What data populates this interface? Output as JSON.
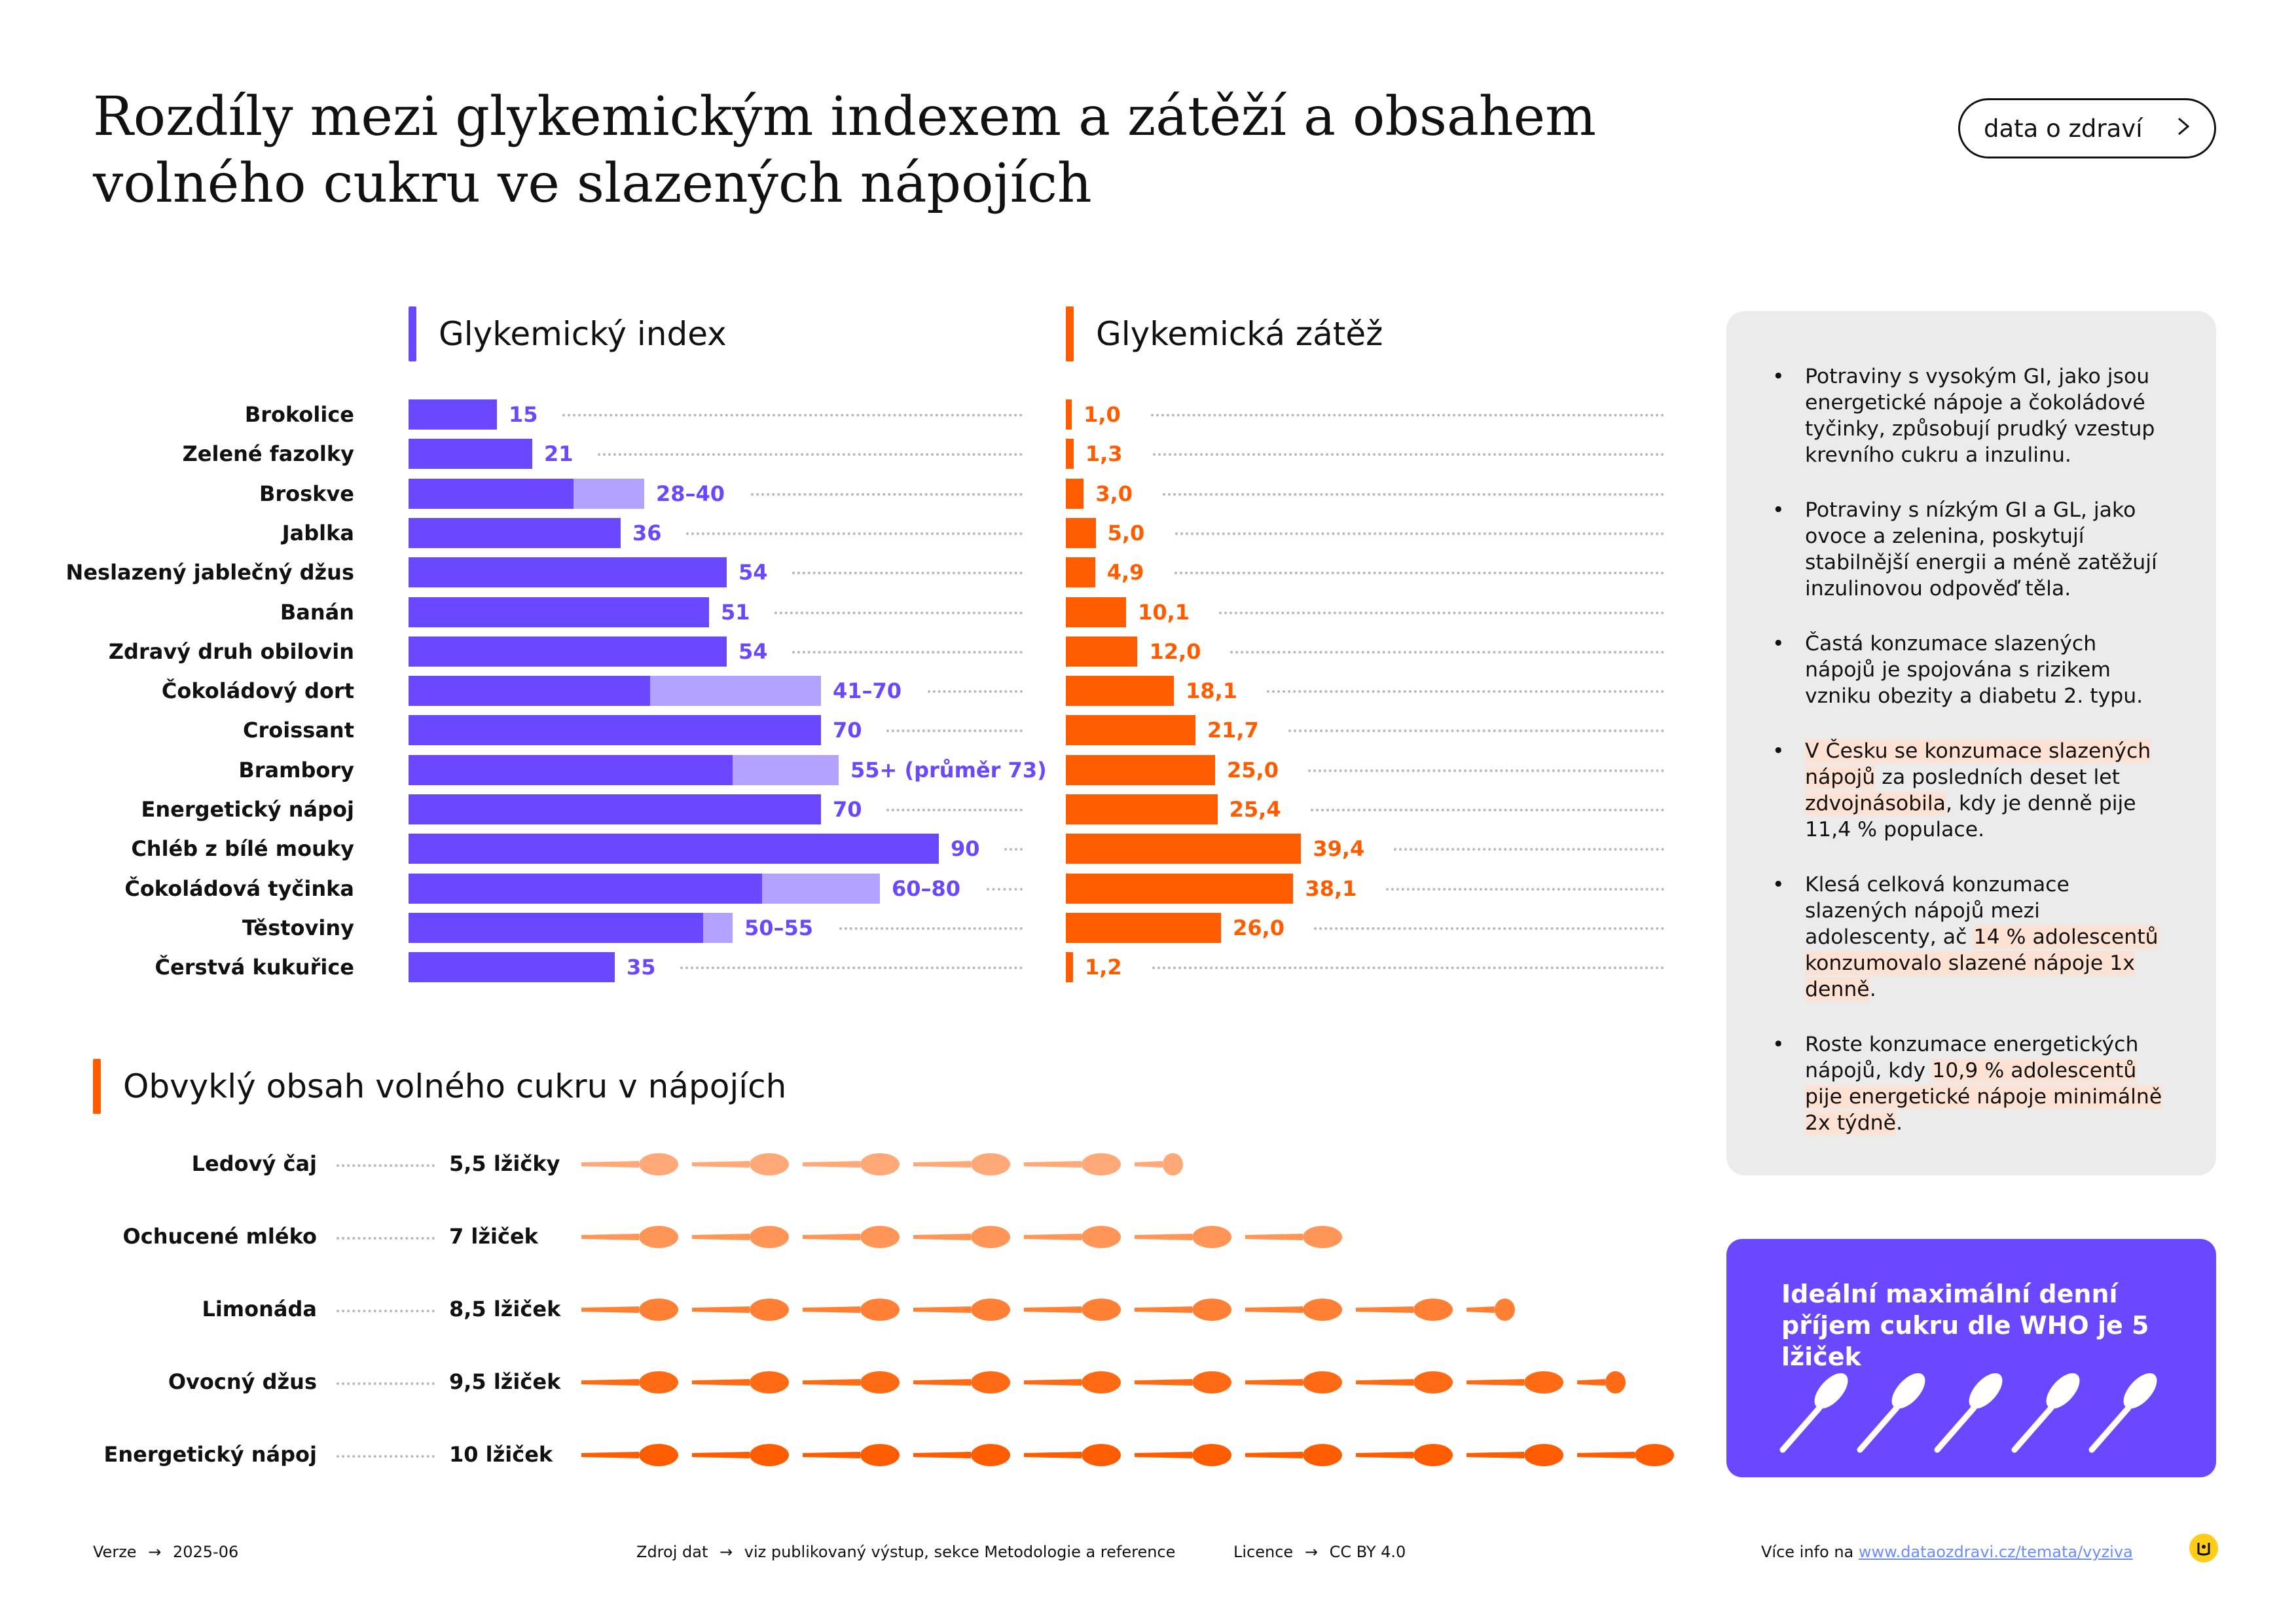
{
  "title_lines": [
    "Rozdíly mezi glykemickým indexem a zátěží a obsahem",
    "volného cukru ve slazených nápojích"
  ],
  "brand_button": "data o zdraví",
  "colors": {
    "purple": "#6a48ff",
    "purple_light": "#b3a2ff",
    "orange": "#ff5c00",
    "highlight": "#fde1d2",
    "spoon_shades": [
      "#ffa878",
      "#ff9658",
      "#ff7f35",
      "#ff6a15",
      "#ff5c00"
    ]
  },
  "chart_data": [
    {
      "type": "bar",
      "orientation": "horizontal",
      "title": "Glykemický index",
      "categories": [
        "Brokolice",
        "Zelené fazolky",
        "Broskve",
        "Jablka",
        "Neslazený jablečný džus",
        "Banán",
        "Zdravý druh obilovin",
        "Čokoládový dort",
        "Croissant",
        "Brambory",
        "Energetický nápoj",
        "Chléb z bílé mouky",
        "Čokoládová tyčinka",
        "Těstoviny",
        "Čerstvá kukuřice"
      ],
      "low": [
        15,
        21,
        28,
        36,
        54,
        51,
        54,
        41,
        70,
        55,
        70,
        90,
        60,
        50,
        35
      ],
      "high": [
        15,
        21,
        40,
        36,
        54,
        51,
        54,
        70,
        70,
        73,
        70,
        90,
        80,
        55,
        35
      ],
      "labels": [
        "15",
        "21",
        "28–40",
        "36",
        "54",
        "51",
        "54",
        "41–70",
        "70",
        "55+ (průměr 73)",
        "70",
        "90",
        "60–80",
        "50–55",
        "35"
      ],
      "xlim": [
        0,
        100
      ]
    },
    {
      "type": "bar",
      "orientation": "horizontal",
      "title": "Glykemická zátěž",
      "categories": [
        "Brokolice",
        "Zelené fazolky",
        "Broskve",
        "Jablka",
        "Neslazený jablečný džus",
        "Banán",
        "Zdravý druh obilovin",
        "Čokoládový dort",
        "Croissant",
        "Brambory",
        "Energetický nápoj",
        "Chléb z bílé mouky",
        "Čokoládová tyčinka",
        "Těstoviny",
        "Čerstvá kukuřice"
      ],
      "values": [
        1.0,
        1.3,
        3.0,
        5.0,
        4.9,
        10.1,
        12.0,
        18.1,
        21.7,
        25.0,
        25.4,
        39.4,
        38.1,
        26.0,
        1.2
      ],
      "labels": [
        "1,0",
        "1,3",
        "3,0",
        "5,0",
        "4,9",
        "10,1",
        "12,0",
        "18,1",
        "21,7",
        "25,0",
        "25,4",
        "39,4",
        "38,1",
        "26,0",
        "1,2"
      ],
      "xlim": [
        0,
        40
      ]
    },
    {
      "type": "pictogram",
      "title": "Obvyklý obsah volného cukru v nápojích",
      "categories": [
        "Ledový čaj",
        "Ochucené mléko",
        "Limonáda",
        "Ovocný džus",
        "Energetický nápoj"
      ],
      "values": [
        5.5,
        7,
        8.5,
        9.5,
        10
      ],
      "labels": [
        "5,5 lžičky",
        "7 lžiček",
        "8,5 lžiček",
        "9,5 lžiček",
        "10 lžiček"
      ]
    }
  ],
  "side_notes": [
    [
      {
        "t": "Potraviny s vysokým GI, jako jsou energetické nápoje a čokoládové tyčinky, způsobují prudký vzestup krevního cukru a inzulinu."
      }
    ],
    [
      {
        "t": "Potraviny s nízkým GI a GL, jako ovoce a zelenina, poskytují stabilnější energii a méně zatěžují inzulinovou odpověď těla."
      }
    ],
    [
      {
        "t": "Častá konzumace slazených nápojů je spojována s rizikem vzniku obezity a diabetu 2. typu."
      }
    ],
    [
      {
        "t": "V Česku se konzumace slazených nápojů",
        "h": true
      },
      {
        "t": " za posledních deset let "
      },
      {
        "t": "zdvojnásobila",
        "h": true
      },
      {
        "t": ", kdy je denně pije 11,4 % populace."
      }
    ],
    [
      {
        "t": "Klesá celková konzumace slazených nápojů mezi adolescenty, ač "
      },
      {
        "t": "14 % adolescentů konzumovalo slazené nápoje 1x denně",
        "h": true
      },
      {
        "t": "."
      }
    ],
    [
      {
        "t": "Roste konzumace energetických nápojů, kdy "
      },
      {
        "t": "10,9 % adolescentů pije energetické nápoje minimálně 2x týdně",
        "h": true
      },
      {
        "t": "."
      }
    ]
  ],
  "who_box": {
    "text": "Ideální maximální denní příjem cukru dle WHO je 5 lžiček",
    "spoons": 5
  },
  "footer": {
    "version_label": "Verze",
    "version": "2025-06",
    "source_label": "Zdroj dat",
    "source": "viz publikovaný výstup, sekce Metodologie a reference",
    "licence_label": "Licence",
    "licence": "CC BY 4.0",
    "more_label": "Více info na",
    "more_link": "www.dataozdravi.cz/temata/vyziva"
  },
  "arrow_glyph": "→"
}
